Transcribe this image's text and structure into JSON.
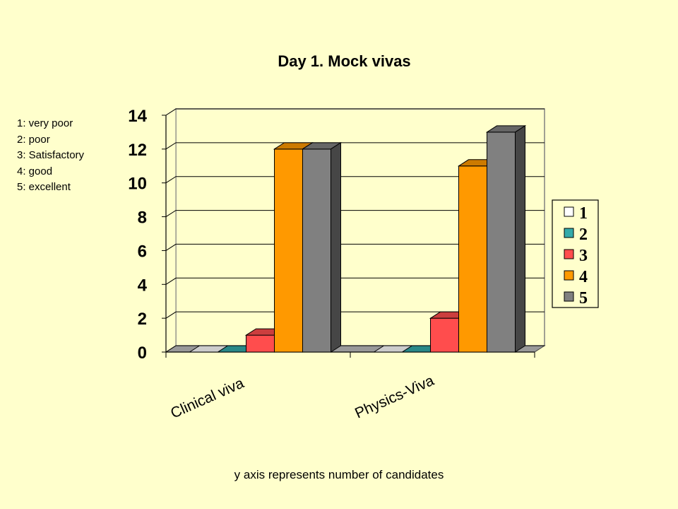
{
  "rating_key": [
    "1: very poor",
    "2: poor",
    "3: Satisfactory",
    "4: good",
    "5: excellent"
  ],
  "footnote": "y axis represents number of candidates",
  "chart_data": {
    "type": "bar",
    "style": "3d-clustered",
    "title": "Day 1. Mock vivas",
    "xlabel": "",
    "ylabel": "",
    "categories": [
      "Clinical viva",
      "Physics-Viva"
    ],
    "series": [
      {
        "name": "1",
        "color": "#ffffff",
        "values": [
          0,
          0
        ]
      },
      {
        "name": "2",
        "color": "#33aaaa",
        "values": [
          0,
          0
        ]
      },
      {
        "name": "3",
        "color": "#ff4d4d",
        "values": [
          1,
          2
        ]
      },
      {
        "name": "4",
        "color": "#ff9900",
        "values": [
          12,
          11
        ]
      },
      {
        "name": "5",
        "color": "#808080",
        "values": [
          12,
          13
        ]
      }
    ],
    "ylim": [
      0,
      14
    ],
    "yticks": [
      0,
      2,
      4,
      6,
      8,
      10,
      12,
      14
    ],
    "grid": true,
    "legend_position": "right"
  }
}
